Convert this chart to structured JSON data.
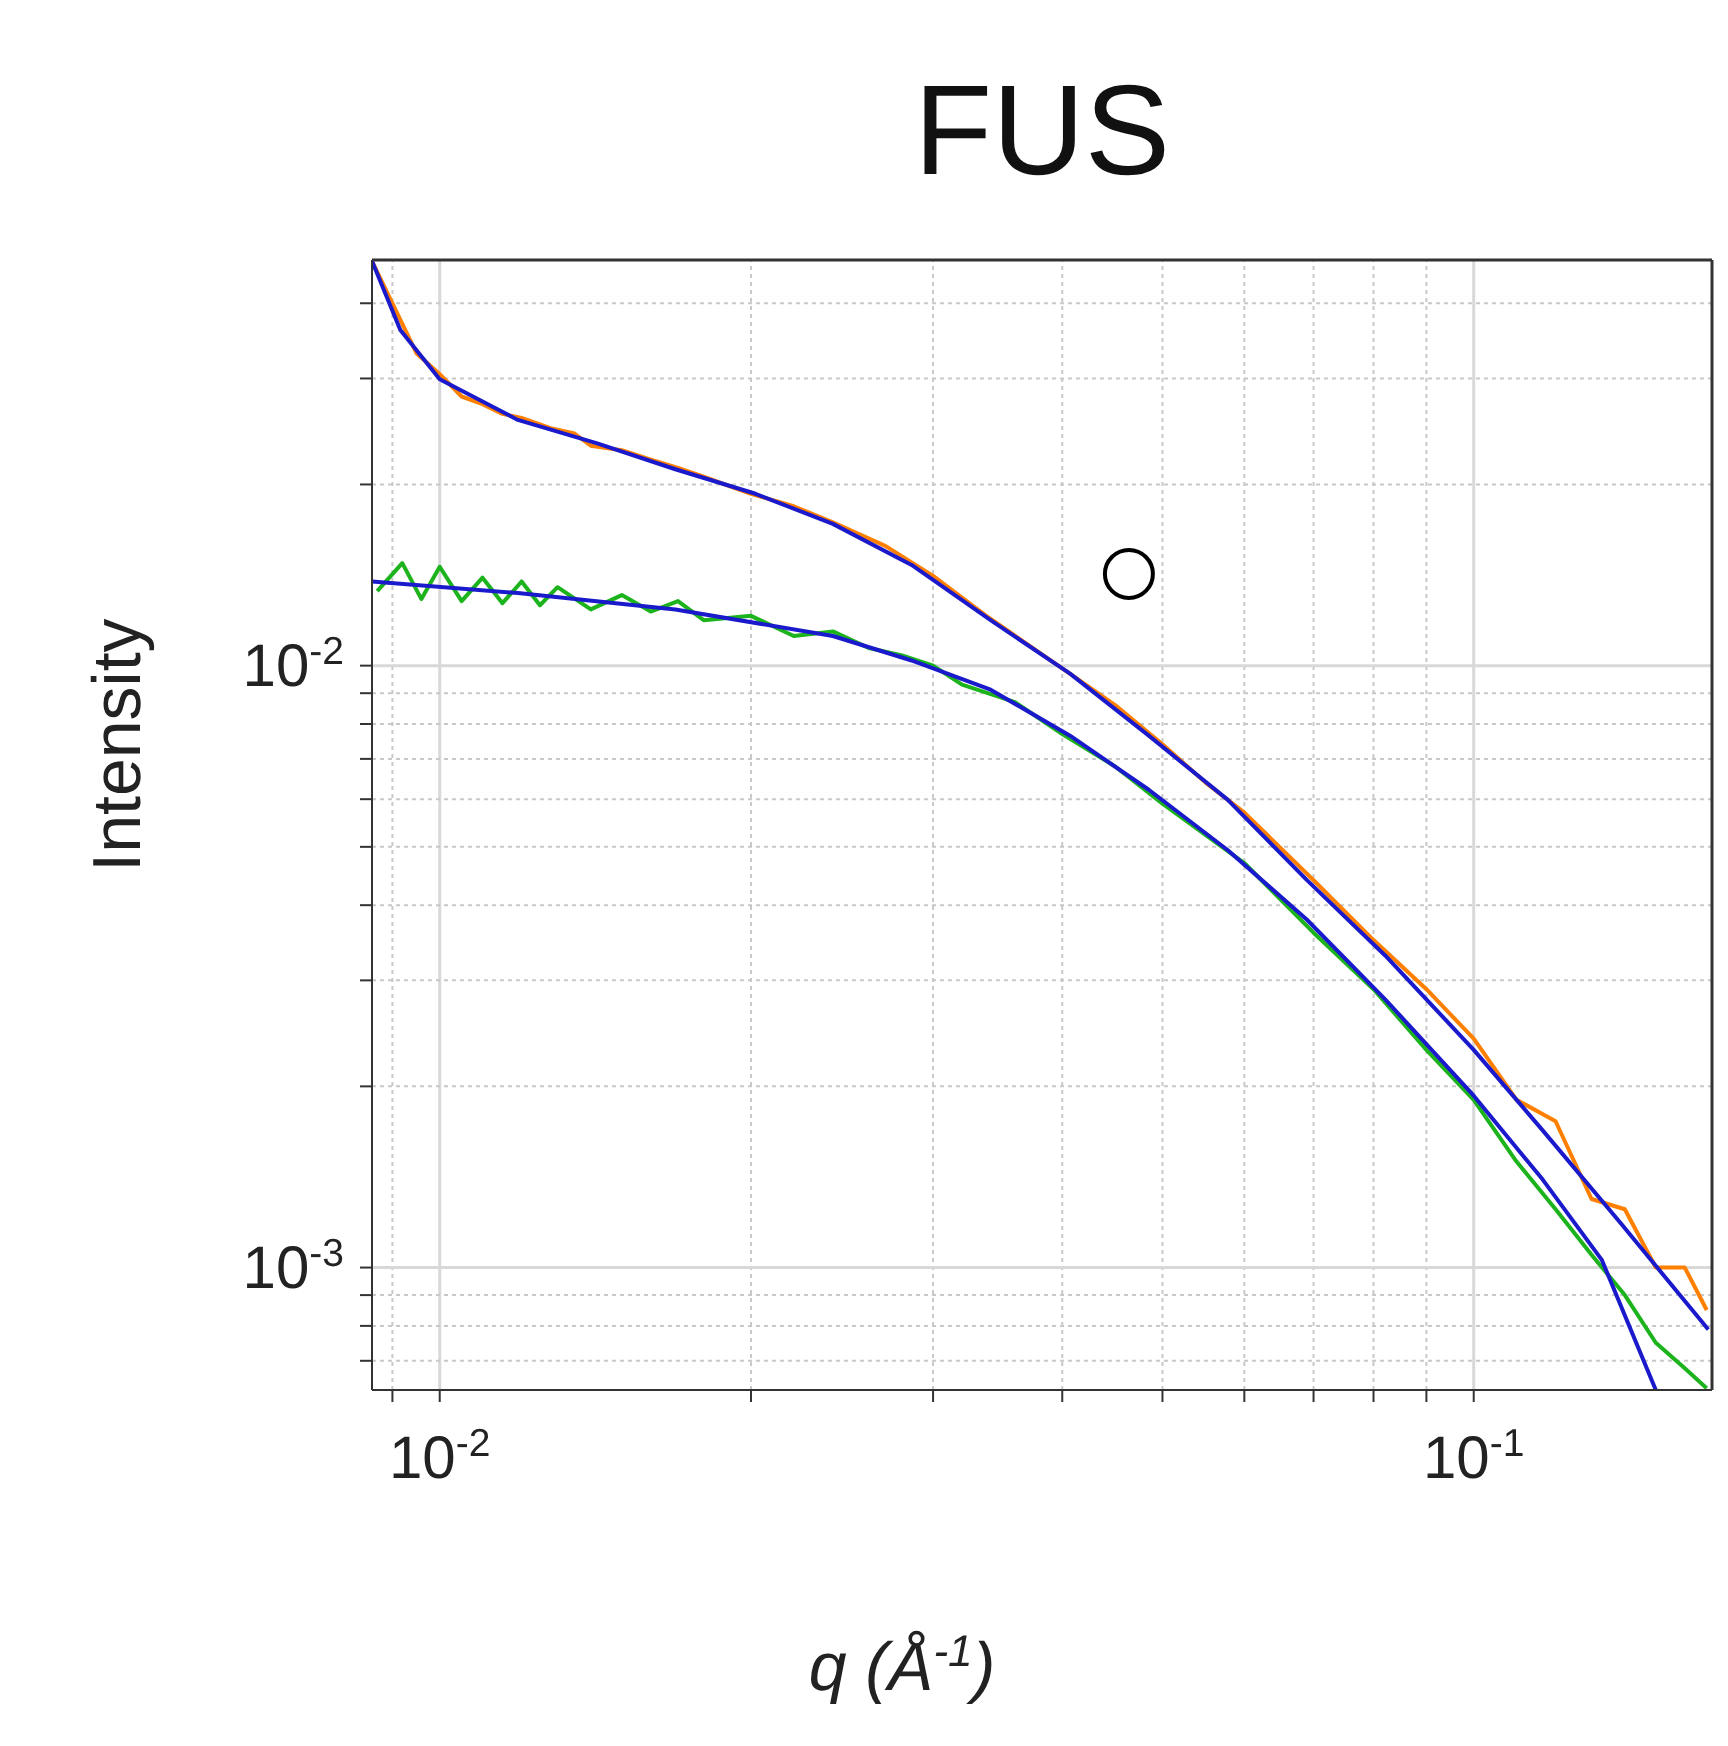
{
  "chart_data": {
    "type": "line",
    "title": "FUS",
    "xlabel": "q (Å$^{-1}$)",
    "ylabel": "Intensity",
    "log": "xy",
    "grid": true,
    "xlim": [
      0.0086,
      0.17
    ],
    "xticks": [
      {
        "value": 0.009,
        "label": null
      },
      {
        "value": 0.01,
        "label": "10$^{-2}$"
      },
      {
        "value": 0.02,
        "label": null
      },
      {
        "value": 0.03,
        "label": null
      },
      {
        "value": 0.04,
        "label": null
      },
      {
        "value": 0.05,
        "label": null
      },
      {
        "value": 0.06,
        "label": null
      },
      {
        "value": 0.07,
        "label": null
      },
      {
        "value": 0.08,
        "label": null
      },
      {
        "value": 0.09,
        "label": null
      },
      {
        "value": 0.1,
        "label": "10$^{-1}$"
      }
    ],
    "ylim": [
      0.000626,
      0.0472
    ],
    "yticks": [
      {
        "value": 0.0007,
        "label": null
      },
      {
        "value": 0.0008,
        "label": null
      },
      {
        "value": 0.0009,
        "label": null
      },
      {
        "value": 0.001,
        "label": "10$^{-3}$"
      },
      {
        "value": 0.002,
        "label": null
      },
      {
        "value": 0.003,
        "label": null
      },
      {
        "value": 0.004,
        "label": null
      },
      {
        "value": 0.005,
        "label": null
      },
      {
        "value": 0.006,
        "label": null
      },
      {
        "value": 0.007,
        "label": null
      },
      {
        "value": 0.008,
        "label": null
      },
      {
        "value": 0.009,
        "label": null
      },
      {
        "value": 0.01,
        "label": "10$^{-2}$"
      },
      {
        "value": 0.02,
        "label": null
      },
      {
        "value": 0.03,
        "label": null
      },
      {
        "value": 0.04,
        "label": null
      }
    ],
    "series": [
      {
        "color": "#ff8000",
        "x": [
          0.0086,
          0.009,
          0.0095,
          0.01,
          0.0105,
          0.011,
          0.0115,
          0.012,
          0.0128,
          0.0135,
          0.014,
          0.015,
          0.016,
          0.017,
          0.018,
          0.02,
          0.022,
          0.024,
          0.027,
          0.03,
          0.034,
          0.04,
          0.045,
          0.05,
          0.055,
          0.06,
          0.07,
          0.08,
          0.09,
          0.1,
          0.11,
          0.12,
          0.13,
          0.14,
          0.15,
          0.16,
          0.168
        ],
        "values": [
          0.047,
          0.04,
          0.033,
          0.0305,
          0.028,
          0.0272,
          0.0262,
          0.0258,
          0.0248,
          0.0243,
          0.0232,
          0.0228,
          0.022,
          0.0213,
          0.0206,
          0.0193,
          0.0184,
          0.0173,
          0.0158,
          0.0141,
          0.012,
          0.0099,
          0.0086,
          0.0074,
          0.0064,
          0.0057,
          0.0044,
          0.0035,
          0.0029,
          0.0024,
          0.0019,
          0.00175,
          0.0013,
          0.00125,
          0.001,
          0.001,
          0.00085
        ]
      },
      {
        "color": "#1db31d",
        "x": [
          0.0087,
          0.0092,
          0.0096,
          0.01,
          0.0105,
          0.011,
          0.0115,
          0.012,
          0.0125,
          0.013,
          0.014,
          0.015,
          0.016,
          0.017,
          0.018,
          0.02,
          0.022,
          0.024,
          0.026,
          0.028,
          0.03,
          0.032,
          0.036,
          0.04,
          0.045,
          0.05,
          0.06,
          0.07,
          0.08,
          0.09,
          0.1,
          0.11,
          0.12,
          0.13,
          0.14,
          0.15,
          0.16,
          0.168
        ],
        "values": [
          0.0133,
          0.0148,
          0.0129,
          0.0146,
          0.0128,
          0.014,
          0.0127,
          0.0138,
          0.0126,
          0.0135,
          0.0124,
          0.0131,
          0.0123,
          0.0128,
          0.0119,
          0.0121,
          0.0112,
          0.0114,
          0.0107,
          0.0104,
          0.01,
          0.0093,
          0.0087,
          0.0077,
          0.0068,
          0.0059,
          0.0047,
          0.0036,
          0.0029,
          0.0023,
          0.0019,
          0.0015,
          0.00125,
          0.00105,
          0.0009,
          0.00075,
          0.00068,
          0.00063
        ]
      },
      {
        "color": "#1a1acc",
        "x": [
          0.0086,
          0.00916,
          0.01,
          0.0119,
          0.0142,
          0.0169,
          0.0202,
          0.024,
          0.0286,
          0.0341,
          0.0407,
          0.0485,
          0.0578,
          0.0689,
          0.0821,
          0.1,
          0.1166,
          0.139,
          0.1686
        ],
        "values": [
          0.047,
          0.0361,
          0.0299,
          0.0256,
          0.0234,
          0.0212,
          0.0193,
          0.0172,
          0.0147,
          0.0119,
          0.0097,
          0.00765,
          0.00599,
          0.00441,
          0.0033,
          0.0023,
          0.00169,
          0.00118,
          0.000789
        ]
      },
      {
        "color": "#1a1acc",
        "x": [
          0.0086,
          0.0119,
          0.0169,
          0.024,
          0.0286,
          0.0341,
          0.0407,
          0.0485,
          0.0578,
          0.0689,
          0.0821,
          0.1,
          0.1166,
          0.133,
          0.15
        ],
        "values": [
          0.0138,
          0.0132,
          0.0124,
          0.0112,
          0.0102,
          0.00912,
          0.00765,
          0.00622,
          0.00494,
          0.00379,
          0.00279,
          0.00193,
          0.0014,
          0.00103,
          0.000626
        ]
      },
      {
        "type": "scatter",
        "marker": "circle",
        "color": "#000000",
        "x": [
          0.0464
        ],
        "values": [
          0.0142
        ]
      }
    ]
  }
}
